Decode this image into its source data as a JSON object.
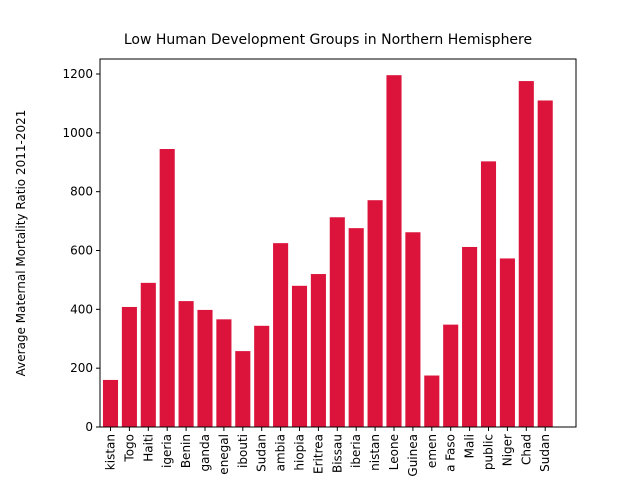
{
  "chart_data": {
    "type": "bar",
    "title": "Low Human Development Groups in Northern Hemisphere",
    "y_label": "Average Maternal Mortality Ratio 2011-2021",
    "categories": [
      "kistan",
      "Togo",
      "Haiti",
      "igeria",
      "Benin",
      "ganda",
      "enegal",
      "ibouti",
      "Sudan",
      "ambia",
      "hiopia",
      "Eritrea",
      "Bissau",
      "iberia",
      "nistan",
      "Leone",
      "Guinea",
      "emen",
      "a Faso",
      "Mali",
      "public",
      "Niger",
      "Chad",
      "Sudan"
    ],
    "values": [
      160,
      408,
      490,
      945,
      428,
      398,
      366,
      258,
      344,
      625,
      480,
      520,
      713,
      676,
      771,
      1196,
      662,
      175,
      348,
      612,
      903,
      573,
      1176,
      1110
    ],
    "color": "#dc143c",
    "ylim": [
      0,
      1251
    ],
    "yticks": [
      0,
      200,
      400,
      600,
      800,
      1000,
      1200
    ]
  }
}
